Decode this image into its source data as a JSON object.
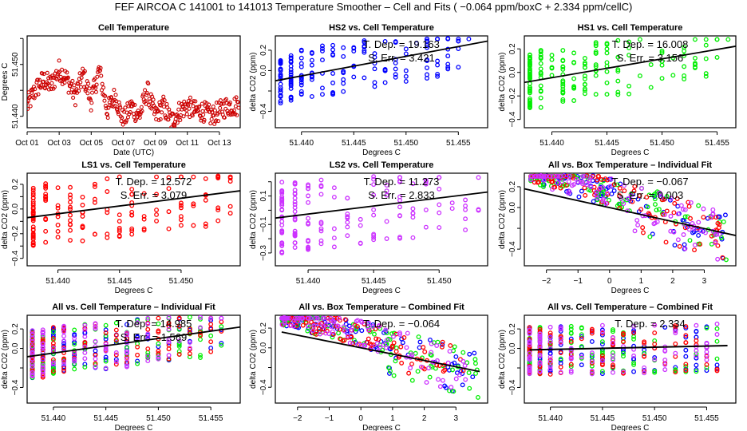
{
  "title": "FEF   AIRCOA C   141001 to 141013   Temperature Smoother – Cell and Fits ( −0.064  ppm/boxC +  2.334  ppm/cellC)",
  "colors": {
    "HS2": "#0000ff",
    "HS1": "#00ee00",
    "LS1": "#ff0000",
    "LS2": "#cc33ff",
    "cell": "#cc0000",
    "fit": "#000000"
  },
  "chart_data": [
    {
      "type": "scatter",
      "title": "Cell Temperature",
      "xlabel": "Date (UTC)",
      "ylabel": "Degrees C",
      "x_ticks": [
        "Oct 01",
        "Oct 03",
        "Oct 05",
        "Oct 07",
        "Oct 09",
        "Oct 11",
        "Oct 13"
      ],
      "xlim": [
        0,
        13.3
      ],
      "ylim": [
        51.4378,
        51.4555
      ],
      "y_ticks": [
        51.44,
        51.445,
        51.45,
        51.455
      ],
      "y_tick_labels": [
        "51.440",
        "",
        "51.450",
        ""
      ],
      "series": [
        {
          "name": "cell",
          "color": "#cc0000",
          "segments": [
            [
              0,
              51.442
            ],
            [
              0.5,
              51.445
            ],
            [
              1,
              51.447
            ],
            [
              1.5,
              51.446
            ],
            [
              2,
              51.449
            ],
            [
              2.5,
              51.447
            ],
            [
              3,
              51.444
            ],
            [
              3.5,
              51.448
            ],
            [
              4,
              51.443
            ],
            [
              4.5,
              51.449
            ],
            [
              5,
              51.441
            ],
            [
              5.5,
              51.444
            ],
            [
              6,
              51.439
            ],
            [
              6.5,
              51.442
            ],
            [
              7,
              51.44
            ],
            [
              7.5,
              51.445
            ],
            [
              8,
              51.44
            ],
            [
              8.5,
              51.442
            ],
            [
              9,
              51.439
            ],
            [
              9.5,
              51.441
            ],
            [
              10,
              51.442
            ],
            [
              10.5,
              51.441
            ],
            [
              11,
              51.441
            ],
            [
              11.5,
              51.44
            ],
            [
              12,
              51.441
            ],
            [
              12.5,
              51.442
            ],
            [
              13,
              51.442
            ]
          ]
        }
      ]
    },
    {
      "type": "scatter",
      "title": "HS2 vs. Cell Temperature",
      "xlabel": "Degrees C",
      "ylabel": "delta CO2 (ppm)",
      "xlim": [
        51.4375,
        51.4578
      ],
      "ylim": [
        -0.56,
        0.34
      ],
      "x_ticks": [
        51.44,
        51.445,
        51.45,
        51.455
      ],
      "y_ticks": [
        -0.4,
        -0.2,
        0.0,
        0.2
      ],
      "y_tick_labels": [
        "−0.4",
        "",
        "0.0",
        "0.2"
      ],
      "series": [
        {
          "name": "HS2",
          "color": "#0000ff"
        }
      ],
      "fit": {
        "slope": 19.163,
        "at": [
          51.4375,
          -0.1
        ]
      },
      "annotations": [
        "T. Dep. =  19.163",
        "S. Err. =  3.421"
      ]
    },
    {
      "type": "scatter",
      "title": "HS1 vs. Cell Temperature",
      "xlabel": "Degrees C",
      "ylabel": "delta CO2 (ppm)",
      "xlim": [
        51.4375,
        51.4567
      ],
      "ylim": [
        -0.47,
        0.31
      ],
      "x_ticks": [
        51.44,
        51.445,
        51.45,
        51.455
      ],
      "y_ticks": [
        -0.4,
        -0.2,
        0.0,
        0.2
      ],
      "y_tick_labels": [
        "−0.4",
        "−0.2",
        "0.0",
        "0.2"
      ],
      "series": [
        {
          "name": "HS1",
          "color": "#00ee00"
        }
      ],
      "fit": {
        "slope": 16.008,
        "at": [
          51.4375,
          -0.085
        ]
      },
      "annotations": [
        "T. Dep. =  16.008",
        "S. Err. =  3.156"
      ]
    },
    {
      "type": "scatter",
      "title": "LS1 vs. Cell Temperature",
      "xlabel": "Degrees C",
      "ylabel": "delta CO2 (ppm)",
      "xlim": [
        51.4375,
        51.4548
      ],
      "ylim": [
        -0.46,
        0.29
      ],
      "x_ticks": [
        51.44,
        51.445,
        51.45
      ],
      "y_ticks": [
        -0.4,
        -0.3,
        -0.2,
        -0.1,
        0.0,
        0.1,
        0.2
      ],
      "y_tick_labels": [
        "−0.4",
        "",
        "−0.2",
        "",
        "0.0",
        "",
        "0.2"
      ],
      "series": [
        {
          "name": "LS1",
          "color": "#ff0000"
        }
      ],
      "fit": {
        "slope": 12.572,
        "at": [
          51.4375,
          -0.07
        ]
      },
      "annotations": [
        "T. Dep. =  12.572",
        "S. Err. =  3.079"
      ]
    },
    {
      "type": "scatter",
      "title": "LS2 vs. Cell Temperature",
      "xlabel": "Degrees C",
      "ylabel": "delta CO2 (ppm)",
      "xlim": [
        51.4375,
        51.4537
      ],
      "ylim": [
        -0.39,
        0.26
      ],
      "x_ticks": [
        51.44,
        51.445,
        51.45
      ],
      "y_ticks": [
        -0.3,
        -0.2,
        -0.1,
        0.0,
        0.1,
        0.2
      ],
      "y_tick_labels": [
        "−0.3",
        "",
        "−0.1",
        "",
        "0.1",
        ""
      ],
      "series": [
        {
          "name": "LS2",
          "color": "#cc33ff"
        }
      ],
      "fit": {
        "slope": 11.273,
        "at": [
          51.4375,
          -0.055
        ]
      },
      "annotations": [
        "T. Dep. =  11.273",
        "S. Err. =  2.833"
      ]
    },
    {
      "type": "scatter",
      "title": "All vs. Box Temperature – Individual Fit",
      "xlabel": "Degrees C",
      "ylabel": "delta CO2 (ppm)",
      "xlim": [
        -2.7,
        4.0
      ],
      "ylim": [
        -0.56,
        0.33
      ],
      "x_ticks": [
        -2,
        -1,
        0,
        1,
        2,
        3
      ],
      "y_ticks": [
        -0.4,
        -0.2,
        0.0,
        0.2
      ],
      "x_tick_labels": [
        "−2",
        "−1",
        "0",
        "1",
        "2",
        "3"
      ],
      "y_tick_labels": [
        "−0.4",
        "",
        "0.0",
        "0.2"
      ],
      "series": [
        {
          "name": "HS2",
          "color": "#0000ff"
        },
        {
          "name": "HS1",
          "color": "#00ee00"
        },
        {
          "name": "LS1",
          "color": "#ff0000"
        },
        {
          "name": "LS2",
          "color": "#cc33ff"
        }
      ],
      "fit": {
        "slope": -0.067,
        "at": [
          -2.7,
          0.18
        ]
      },
      "annotations": [
        "T. Dep. =  −0.067",
        "S. Err. =  0.003"
      ]
    },
    {
      "type": "scatter",
      "title": "All vs. Cell Temperature – Individual Fit",
      "xlabel": "Degrees C",
      "ylabel": "delta CO2 (ppm)",
      "xlim": [
        51.4375,
        51.4578
      ],
      "ylim": [
        -0.56,
        0.34
      ],
      "x_ticks": [
        51.44,
        51.445,
        51.45,
        51.455
      ],
      "y_ticks": [
        -0.4,
        -0.2,
        0.0,
        0.2
      ],
      "y_tick_labels": [
        "−0.4",
        "",
        "0.0",
        "0.2"
      ],
      "series": [
        {
          "name": "HS2",
          "color": "#0000ff"
        },
        {
          "name": "HS1",
          "color": "#00ee00"
        },
        {
          "name": "LS1",
          "color": "#ff0000"
        },
        {
          "name": "LS2",
          "color": "#cc33ff"
        }
      ],
      "fit": {
        "slope": 14.985,
        "at": [
          51.4375,
          -0.085
        ]
      },
      "annotations": [
        "T. Dep. =  14.985",
        "S. Err. =  1.569"
      ]
    },
    {
      "type": "scatter",
      "title": "All vs. Box Temperature – Combined Fit",
      "xlabel": "Degrees C",
      "ylabel": "delta CO2 (ppm)",
      "xlim": [
        -2.7,
        4.0
      ],
      "ylim": [
        -0.56,
        0.33
      ],
      "x_ticks": [
        -2,
        -1,
        0,
        1,
        2,
        3
      ],
      "y_ticks": [
        -0.4,
        -0.2,
        0.0,
        0.2
      ],
      "x_tick_labels": [
        "−2",
        "−1",
        "0",
        "1",
        "2",
        "3"
      ],
      "y_tick_labels": [
        "−0.4",
        "",
        "0.0",
        "0.2"
      ],
      "series": [
        {
          "name": "HS2",
          "color": "#0000ff"
        },
        {
          "name": "HS1",
          "color": "#00ee00"
        },
        {
          "name": "LS1",
          "color": "#ff0000"
        },
        {
          "name": "LS2",
          "color": "#cc33ff"
        }
      ],
      "fit": {
        "slope": -0.064,
        "at": [
          -2.5,
          0.16
        ]
      },
      "annotations": [
        "T. Dep. =  −0.064"
      ]
    },
    {
      "type": "scatter",
      "title": "All vs. Cell Temperature – Combined Fit",
      "xlabel": "Degrees C",
      "ylabel": "delta CO2 (ppm)",
      "xlim": [
        51.4375,
        51.4578
      ],
      "ylim": [
        -0.56,
        0.34
      ],
      "x_ticks": [
        51.44,
        51.445,
        51.45,
        51.455
      ],
      "y_ticks": [
        -0.4,
        -0.2,
        0.0,
        0.2
      ],
      "y_tick_labels": [
        "−0.4",
        "",
        "0.0",
        "0.2"
      ],
      "series": [
        {
          "name": "HS2",
          "color": "#0000ff"
        },
        {
          "name": "HS1",
          "color": "#00ee00"
        },
        {
          "name": "LS1",
          "color": "#ff0000"
        },
        {
          "name": "LS2",
          "color": "#cc33ff"
        }
      ],
      "fit": {
        "slope": 2.334,
        "at": [
          51.438,
          -0.015
        ]
      },
      "annotations": [
        "T. Dep. =  2.334"
      ]
    }
  ]
}
